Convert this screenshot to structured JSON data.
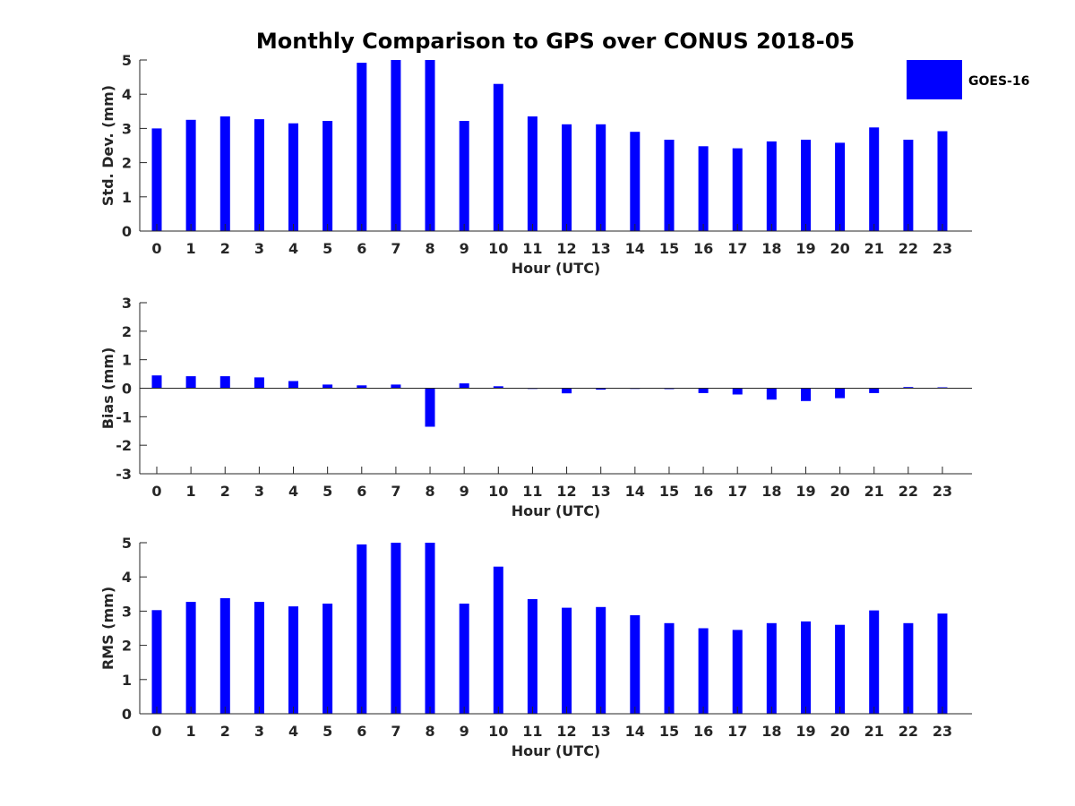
{
  "chart_data": {
    "type": "bar",
    "title": "Monthly Comparison to GPS over CONUS 2018-05",
    "legend": {
      "label": "GOES-16",
      "color": "#0000ff",
      "placement": "top-right"
    },
    "bar_color": "#0000ff",
    "panels": [
      {
        "id": "std",
        "ylabel": "Std. Dev. (mm)",
        "xlabel": "Hour (UTC)",
        "ylim": [
          0,
          5
        ],
        "yticks": [
          0,
          1,
          2,
          3,
          4,
          5
        ],
        "categories": [
          "0",
          "1",
          "2",
          "3",
          "4",
          "5",
          "6",
          "7",
          "8",
          "9",
          "10",
          "11",
          "12",
          "13",
          "14",
          "15",
          "16",
          "17",
          "18",
          "19",
          "20",
          "21",
          "22",
          "23"
        ],
        "series": [
          {
            "name": "GOES-16",
            "values": [
              3.0,
              3.25,
              3.35,
              3.27,
              3.15,
              3.22,
              4.92,
              5.0,
              5.0,
              3.22,
              4.3,
              3.35,
              3.12,
              3.12,
              2.9,
              2.67,
              2.48,
              2.42,
              2.62,
              2.67,
              2.58,
              3.03,
              2.67,
              2.92
            ]
          }
        ]
      },
      {
        "id": "bias",
        "ylabel": "Bias (mm)",
        "xlabel": "Hour (UTC)",
        "ylim": [
          -3,
          3
        ],
        "yticks": [
          -3,
          -2,
          -1,
          0,
          1,
          2,
          3
        ],
        "categories": [
          "0",
          "1",
          "2",
          "3",
          "4",
          "5",
          "6",
          "7",
          "8",
          "9",
          "10",
          "11",
          "12",
          "13",
          "14",
          "15",
          "16",
          "17",
          "18",
          "19",
          "20",
          "21",
          "22",
          "23"
        ],
        "series": [
          {
            "name": "GOES-16",
            "values": [
              0.45,
              0.42,
              0.42,
              0.38,
              0.25,
              0.13,
              0.1,
              0.13,
              -1.35,
              0.17,
              0.07,
              -0.02,
              -0.18,
              -0.05,
              -0.02,
              -0.03,
              -0.17,
              -0.22,
              -0.4,
              -0.45,
              -0.35,
              -0.17,
              0.04,
              0.03
            ]
          }
        ]
      },
      {
        "id": "rms",
        "ylabel": "RMS (mm)",
        "xlabel": "Hour (UTC)",
        "ylim": [
          0,
          5
        ],
        "yticks": [
          0,
          1,
          2,
          3,
          4,
          5
        ],
        "categories": [
          "0",
          "1",
          "2",
          "3",
          "4",
          "5",
          "6",
          "7",
          "8",
          "9",
          "10",
          "11",
          "12",
          "13",
          "14",
          "15",
          "16",
          "17",
          "18",
          "19",
          "20",
          "21",
          "22",
          "23"
        ],
        "series": [
          {
            "name": "GOES-16",
            "values": [
              3.03,
              3.27,
              3.38,
              3.27,
              3.14,
              3.22,
              4.95,
              5.0,
              5.0,
              3.22,
              4.3,
              3.35,
              3.1,
              3.12,
              2.88,
              2.65,
              2.5,
              2.45,
              2.65,
              2.7,
              2.6,
              3.02,
              2.65,
              2.93
            ]
          }
        ]
      }
    ]
  }
}
